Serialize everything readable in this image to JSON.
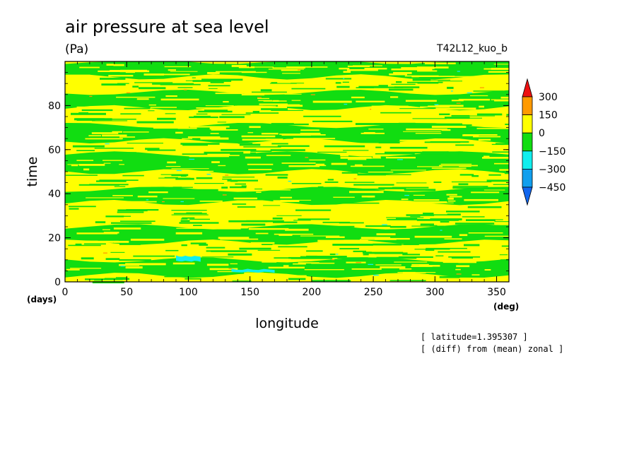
{
  "chart_data": {
    "type": "heatmap",
    "title": "air pressure at sea level",
    "units": "(Pa)",
    "run_label": "T42L12_kuo_b",
    "xlabel": "longitude",
    "ylabel": "time",
    "x_unit": "(deg)",
    "y_unit": "(days)",
    "xlim": [
      0,
      360
    ],
    "ylim": [
      0,
      100
    ],
    "x_ticks": [
      0,
      50,
      100,
      150,
      200,
      250,
      300,
      350
    ],
    "y_ticks": [
      0,
      20,
      40,
      60,
      80
    ],
    "notes": [
      "[ latitude=1.395307 ]",
      "[ (diff) from (mean) zonal ]"
    ],
    "colorbar": {
      "levels": [
        300,
        150,
        0,
        -150,
        -300,
        -450
      ],
      "bins": [
        {
          "range": "above 300",
          "color": "#ee1111"
        },
        {
          "range": "150 to 300",
          "color": "#ff9a00"
        },
        {
          "range": "0 to 150",
          "color": "#ffff00"
        },
        {
          "range": "-150 to 0",
          "color": "#11dd11"
        },
        {
          "range": "-300 to -150",
          "color": "#11eeee"
        },
        {
          "range": "-450 to -300",
          "color": "#119fee"
        },
        {
          "range": "below -450",
          "color": "#1166ee"
        }
      ]
    },
    "time_bands": [
      {
        "t": [
          0,
          3
        ],
        "dominant": "yellow"
      },
      {
        "t": [
          3,
          10
        ],
        "dominant": "green"
      },
      {
        "t": [
          10,
          18
        ],
        "dominant": "yellow"
      },
      {
        "t": [
          18,
          25
        ],
        "dominant": "green"
      },
      {
        "t": [
          25,
          36
        ],
        "dominant": "yellow"
      },
      {
        "t": [
          36,
          42
        ],
        "dominant": "green"
      },
      {
        "t": [
          42,
          50
        ],
        "dominant": "yellow"
      },
      {
        "t": [
          50,
          58
        ],
        "dominant": "green"
      },
      {
        "t": [
          58,
          64
        ],
        "dominant": "yellow"
      },
      {
        "t": [
          64,
          71
        ],
        "dominant": "green"
      },
      {
        "t": [
          71,
          79
        ],
        "dominant": "yellow"
      },
      {
        "t": [
          79,
          86
        ],
        "dominant": "green"
      },
      {
        "t": [
          86,
          93
        ],
        "dominant": "yellow"
      },
      {
        "t": [
          93,
          100
        ],
        "dominant": "green"
      }
    ],
    "notable_regions": [
      {
        "x": [
          90,
          110
        ],
        "t": [
          9,
          12
        ],
        "color": "cyan"
      },
      {
        "x": [
          135,
          170
        ],
        "t": [
          4,
          6
        ],
        "color": "cyan"
      }
    ]
  }
}
